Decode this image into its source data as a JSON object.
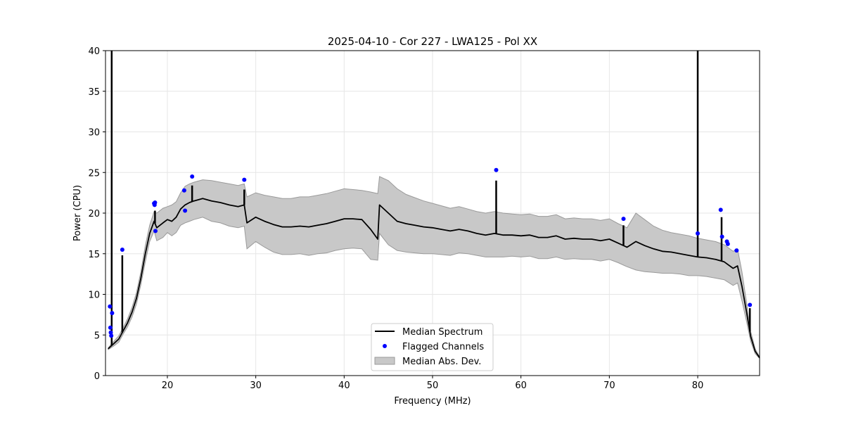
{
  "chart_data": {
    "type": "line",
    "title": "2025-04-10 - Cor 227 - LWA125 - Pol XX",
    "xlabel": "Frequency (MHz)",
    "ylabel": "Power (CPU)",
    "xlim": [
      13,
      87
    ],
    "ylim": [
      0,
      40
    ],
    "xticks": [
      20,
      30,
      40,
      50,
      60,
      70,
      80
    ],
    "yticks": [
      0,
      5,
      10,
      15,
      20,
      25,
      30,
      35,
      40
    ],
    "grid": true,
    "legend_position": "bottom-center",
    "legend": {
      "median": "Median Spectrum",
      "flagged": "Flagged Channels",
      "mad": "Median Abs. Dev."
    },
    "colors": {
      "median": "#000000",
      "flagged": "#0000ff",
      "mad_fill": "#c8c8c8",
      "mad_edge": "#9a9a9a",
      "grid": "#e6e6e6"
    },
    "median_spectrum": {
      "x": [
        13.3,
        13.6,
        14.0,
        14.5,
        15.0,
        15.5,
        16.0,
        16.5,
        17.0,
        17.5,
        18.0,
        18.5,
        18.8,
        19.5,
        20.0,
        20.5,
        21.0,
        21.5,
        22.0,
        22.5,
        23.0,
        24.0,
        25.0,
        26.0,
        27.0,
        28.0,
        28.7,
        29.0,
        30.0,
        31.0,
        32.0,
        33.0,
        34.0,
        35.0,
        36.0,
        37.0,
        38.0,
        39.0,
        40.0,
        41.0,
        42.0,
        43.0,
        43.8,
        44.0,
        45.0,
        46.0,
        47.0,
        48.0,
        49.0,
        50.0,
        51.0,
        52.0,
        53.0,
        54.0,
        55.0,
        56.0,
        57.0,
        58.0,
        59.0,
        60.0,
        61.0,
        62.0,
        63.0,
        64.0,
        65.0,
        66.0,
        67.0,
        68.0,
        69.0,
        70.0,
        71.0,
        72.0,
        73.0,
        74.0,
        75.0,
        76.0,
        77.0,
        78.0,
        79.0,
        80.0,
        81.0,
        82.0,
        83.0,
        84.0,
        84.5,
        85.0,
        85.5,
        86.0,
        86.5,
        87.0
      ],
      "y": [
        3.3,
        3.6,
        4.0,
        4.5,
        5.5,
        6.5,
        7.8,
        9.5,
        12.0,
        15.0,
        17.5,
        19.0,
        18.2,
        18.8,
        19.2,
        19.0,
        19.5,
        20.5,
        21.0,
        21.3,
        21.5,
        21.8,
        21.5,
        21.3,
        21.0,
        20.8,
        21.0,
        18.8,
        19.5,
        19.0,
        18.6,
        18.3,
        18.3,
        18.4,
        18.3,
        18.5,
        18.7,
        19.0,
        19.3,
        19.3,
        19.2,
        18.0,
        16.8,
        21.0,
        20.0,
        19.0,
        18.7,
        18.5,
        18.3,
        18.2,
        18.0,
        17.8,
        18.0,
        17.8,
        17.5,
        17.3,
        17.5,
        17.3,
        17.3,
        17.2,
        17.3,
        17.0,
        17.0,
        17.2,
        16.8,
        16.9,
        16.8,
        16.8,
        16.6,
        16.8,
        16.3,
        15.8,
        16.5,
        16.0,
        15.6,
        15.3,
        15.2,
        15.0,
        14.8,
        14.6,
        14.5,
        14.3,
        14.0,
        13.2,
        13.5,
        11.0,
        8.0,
        4.8,
        3.0,
        2.2
      ],
      "mad_upper": [
        3.4,
        3.8,
        4.3,
        4.9,
        5.9,
        7.0,
        8.4,
        10.2,
        12.8,
        16.0,
        18.5,
        20.2,
        20.0,
        20.6,
        20.8,
        21.0,
        21.4,
        22.5,
        23.3,
        23.6,
        23.8,
        24.1,
        24.0,
        23.8,
        23.6,
        23.4,
        23.6,
        22.0,
        22.5,
        22.2,
        22.0,
        21.8,
        21.8,
        22.0,
        22.0,
        22.2,
        22.4,
        22.7,
        23.0,
        22.9,
        22.8,
        22.6,
        22.4,
        24.5,
        24.0,
        23.0,
        22.3,
        21.9,
        21.5,
        21.2,
        20.9,
        20.6,
        20.8,
        20.5,
        20.2,
        20.0,
        20.2,
        20.0,
        19.9,
        19.8,
        19.9,
        19.6,
        19.6,
        19.8,
        19.3,
        19.4,
        19.3,
        19.3,
        19.1,
        19.3,
        18.7,
        18.2,
        20.0,
        19.2,
        18.4,
        17.9,
        17.6,
        17.4,
        17.2,
        16.9,
        16.7,
        16.5,
        16.1,
        15.3,
        15.6,
        12.8,
        9.2,
        5.4,
        3.3,
        2.3
      ],
      "mad_lower": [
        3.2,
        3.4,
        3.7,
        4.1,
        5.1,
        6.0,
        7.2,
        8.8,
        11.2,
        14.0,
        16.5,
        17.8,
        16.6,
        17.0,
        17.6,
        17.2,
        17.6,
        18.5,
        18.8,
        19.0,
        19.2,
        19.5,
        19.0,
        18.8,
        18.4,
        18.2,
        18.4,
        15.6,
        16.5,
        15.8,
        15.2,
        14.9,
        14.9,
        15.0,
        14.8,
        15.0,
        15.1,
        15.4,
        15.6,
        15.7,
        15.6,
        14.3,
        14.2,
        17.5,
        16.1,
        15.4,
        15.2,
        15.1,
        15.0,
        15.0,
        14.9,
        14.8,
        15.1,
        15.0,
        14.8,
        14.6,
        14.6,
        14.6,
        14.7,
        14.6,
        14.7,
        14.4,
        14.4,
        14.6,
        14.3,
        14.4,
        14.3,
        14.3,
        14.1,
        14.3,
        13.9,
        13.4,
        13.0,
        12.8,
        12.7,
        12.6,
        12.6,
        12.5,
        12.3,
        12.3,
        12.2,
        12.0,
        11.8,
        11.1,
        11.4,
        9.2,
        6.8,
        4.2,
        2.7,
        2.1
      ]
    },
    "flagged_channels": {
      "x": [
        13.5,
        13.55,
        13.6,
        13.65,
        13.75,
        14.9,
        18.5,
        18.55,
        18.6,
        18.65,
        21.9,
        22.0,
        22.8,
        28.7,
        57.2,
        71.6,
        80.0,
        82.6,
        82.75,
        83.3,
        83.4,
        84.4,
        85.9
      ],
      "y": [
        8.5,
        5.9,
        5.3,
        4.9,
        7.7,
        15.5,
        21.2,
        21.0,
        21.3,
        17.8,
        22.8,
        20.3,
        24.5,
        24.1,
        25.3,
        19.3,
        17.5,
        20.4,
        17.1,
        16.5,
        16.2,
        15.4,
        8.7
      ]
    },
    "spikes": {
      "x": [
        13.7,
        14.9,
        18.6,
        22.8,
        28.7,
        57.2,
        71.6,
        80.0,
        82.7,
        85.9
      ],
      "y": [
        40,
        14.8,
        20.3,
        23.4,
        22.9,
        24.0,
        18.5,
        40,
        19.5,
        8.3
      ]
    }
  }
}
